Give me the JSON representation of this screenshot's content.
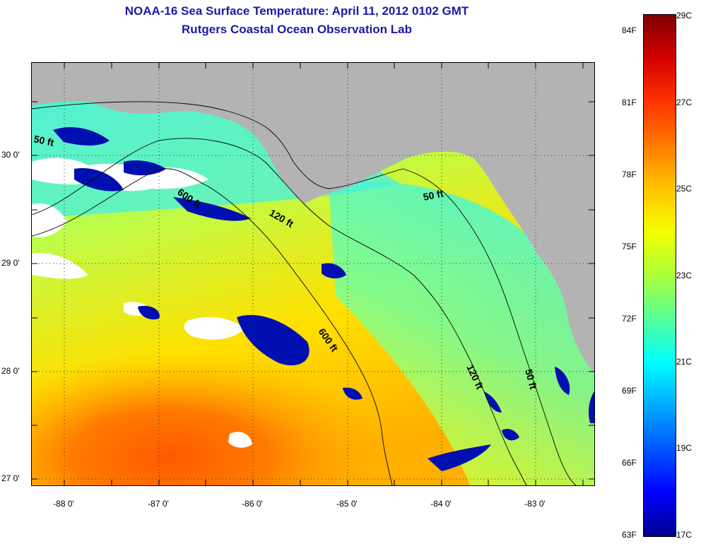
{
  "title_line1": "NOAA-16 Sea Surface Temperature:  April 11, 2012 0102 GMT",
  "title_line2": "Rutgers Coastal Ocean Observation Lab",
  "latitude_labels": [
    "30 0'",
    "29 0'",
    "28 0'",
    "27 0'"
  ],
  "longitude_labels": [
    "-88 0'",
    "-87 0'",
    "-86 0'",
    "-85 0'",
    "-84 0'",
    "-83 0'"
  ],
  "contour_labels": [
    "50 ft",
    "600 ft",
    "120 ft",
    "50 ft",
    "600 ft",
    "120 ft",
    "50 ft"
  ],
  "colorbar": {
    "fahrenheit_labels": [
      "84F",
      "81F",
      "78F",
      "75F",
      "72F",
      "69F",
      "66F",
      "63F"
    ],
    "celsius_labels": [
      "29C",
      "27C",
      "25C",
      "23C",
      "21C",
      "19C",
      "17C"
    ],
    "colors": [
      "#800000",
      "#d40000",
      "#ff3300",
      "#ff7a00",
      "#ffc400",
      "#f5ff00",
      "#aaff3a",
      "#55ff99",
      "#00ffff",
      "#00aaff",
      "#0055ff",
      "#0000ff",
      "#00008f"
    ]
  },
  "colors": {
    "land": "#b3b3b3",
    "cloud": "#ffffff",
    "title": "#1a1aa6"
  }
}
